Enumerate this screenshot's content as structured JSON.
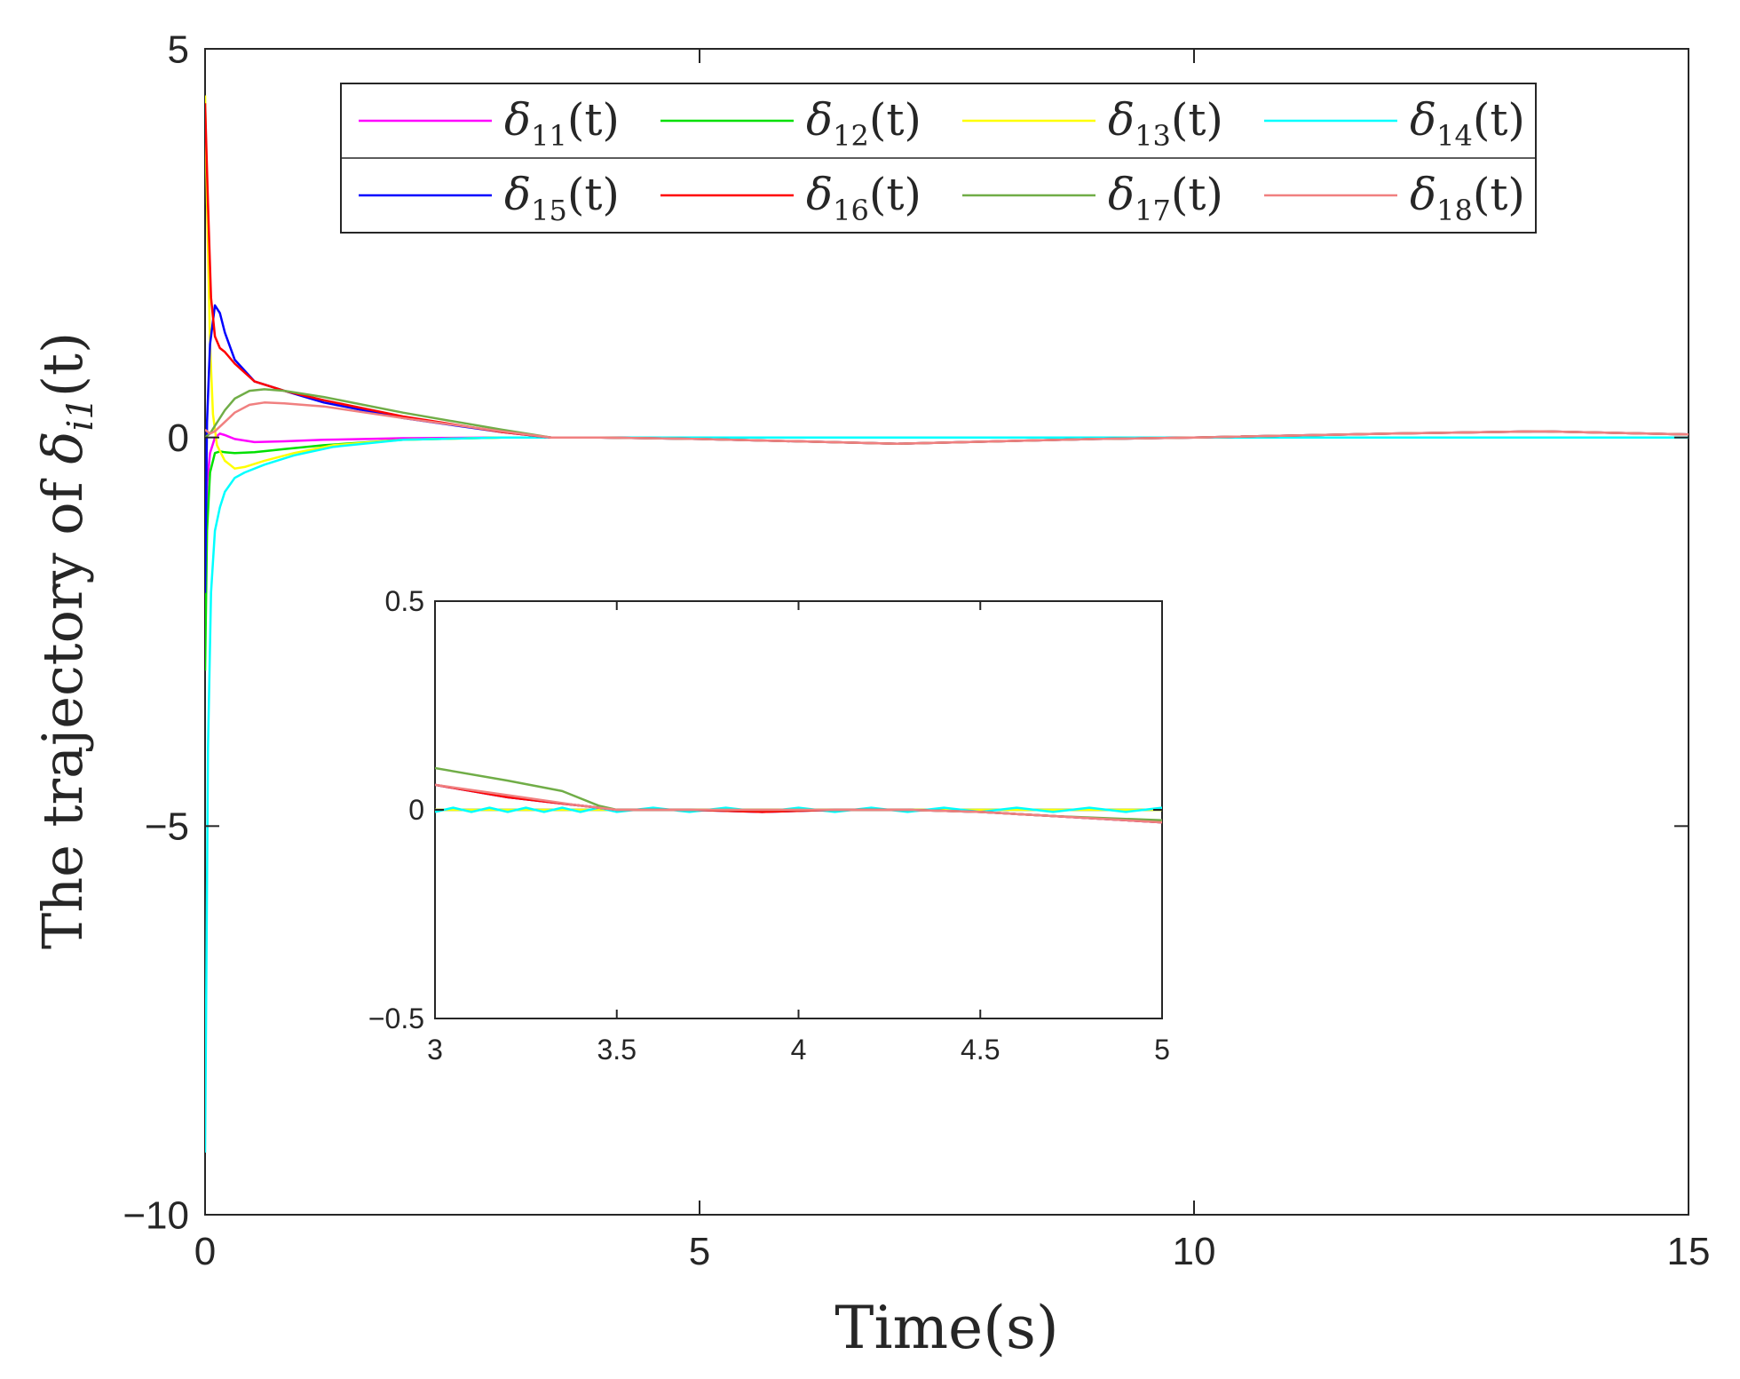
{
  "chart_data": [
    {
      "type": "line",
      "title": "",
      "xlabel": "Time(s)",
      "ylabel": "The trajectory of δ_{i1}(t)",
      "ylabel_parts": {
        "prefix": "The trajectory of ",
        "sym": "δ",
        "sub": "i1",
        "suffix": "(t)"
      },
      "xlim": [
        0,
        15
      ],
      "ylim": [
        -10,
        5
      ],
      "xticks": [
        0,
        5,
        10,
        15
      ],
      "yticks": [
        -10,
        -5,
        0,
        5
      ],
      "xtick_labels": [
        "0",
        "5",
        "10",
        "15"
      ],
      "ytick_labels": [
        "−10",
        "−5",
        "0",
        "5"
      ],
      "grid": false,
      "legend": {
        "placement": "top-right",
        "columns": 4
      },
      "series": [
        {
          "name": "δ11(t)",
          "sym": "δ",
          "sub": "11",
          "arg": "(t)",
          "color": "#ff00ff",
          "x": [
            0,
            0.02,
            0.05,
            0.1,
            0.15,
            0.2,
            0.3,
            0.5,
            0.8,
            1.2,
            2,
            3,
            5,
            10,
            15
          ],
          "y": [
            -1.5,
            -0.6,
            -0.2,
            0.0,
            0.05,
            0.03,
            -0.02,
            -0.06,
            -0.05,
            -0.03,
            -0.01,
            0.0,
            0.0,
            0.0,
            0.0
          ]
        },
        {
          "name": "δ12(t)",
          "sym": "δ",
          "sub": "12",
          "arg": "(t)",
          "color": "#00e000",
          "x": [
            0,
            0.02,
            0.05,
            0.1,
            0.15,
            0.2,
            0.3,
            0.5,
            0.8,
            1.2,
            2,
            3,
            5,
            10,
            15
          ],
          "y": [
            -3.0,
            -1.2,
            -0.45,
            -0.2,
            -0.18,
            -0.19,
            -0.2,
            -0.19,
            -0.15,
            -0.1,
            -0.03,
            0.0,
            0.0,
            0.0,
            0.0
          ]
        },
        {
          "name": "δ13(t)",
          "sym": "δ",
          "sub": "13",
          "arg": "(t)",
          "color": "#ffff00",
          "x": [
            0,
            0.02,
            0.05,
            0.08,
            0.12,
            0.2,
            0.3,
            0.4,
            0.6,
            0.9,
            1.3,
            2,
            3,
            5,
            10,
            15
          ],
          "y": [
            4.4,
            3.0,
            1.2,
            0.3,
            -0.1,
            -0.3,
            -0.4,
            -0.38,
            -0.3,
            -0.2,
            -0.1,
            -0.03,
            0.0,
            0.0,
            0.0,
            0.0
          ]
        },
        {
          "name": "δ14(t)",
          "sym": "δ",
          "sub": "14",
          "arg": "(t)",
          "color": "#00ffff",
          "x": [
            0,
            0.03,
            0.06,
            0.1,
            0.15,
            0.2,
            0.3,
            0.4,
            0.6,
            0.9,
            1.3,
            2,
            3,
            5,
            10,
            15
          ],
          "y": [
            -9.2,
            -4.0,
            -2.0,
            -1.2,
            -0.9,
            -0.7,
            -0.52,
            -0.45,
            -0.35,
            -0.23,
            -0.12,
            -0.03,
            0.0,
            0.0,
            0.0,
            0.0
          ]
        },
        {
          "name": "δ15(t)",
          "sym": "δ",
          "sub": "15",
          "arg": "(t)",
          "color": "#0000ff",
          "x": [
            0,
            0.02,
            0.05,
            0.1,
            0.15,
            0.2,
            0.3,
            0.5,
            0.8,
            1.2,
            2,
            3,
            3.5,
            4,
            5,
            7,
            9,
            10,
            12,
            13.5,
            15
          ],
          "y": [
            -2.0,
            0.2,
            1.2,
            1.7,
            1.6,
            1.35,
            1.0,
            0.72,
            0.6,
            0.45,
            0.25,
            0.07,
            0.0,
            0.0,
            -0.02,
            -0.08,
            -0.02,
            0.0,
            0.05,
            0.08,
            0.04
          ]
        },
        {
          "name": "δ16(t)",
          "sym": "δ",
          "sub": "16",
          "arg": "(t)",
          "color": "#ff0000",
          "x": [
            0,
            0.03,
            0.06,
            0.1,
            0.15,
            0.2,
            0.3,
            0.5,
            0.8,
            1.2,
            2,
            3,
            3.5,
            4,
            5,
            7,
            9,
            10,
            12,
            13.5,
            15
          ],
          "y": [
            4.3,
            3.0,
            1.8,
            1.3,
            1.15,
            1.1,
            0.95,
            0.72,
            0.6,
            0.48,
            0.27,
            0.07,
            0.0,
            0.0,
            -0.02,
            -0.08,
            -0.02,
            0.0,
            0.05,
            0.08,
            0.04
          ]
        },
        {
          "name": "δ17(t)",
          "sym": "δ",
          "sub": "17",
          "arg": "(t)",
          "color": "#70ad47",
          "x": [
            0,
            0.05,
            0.1,
            0.2,
            0.3,
            0.45,
            0.6,
            0.8,
            1.2,
            2,
            3,
            3.5,
            4,
            5,
            7,
            9,
            10,
            12,
            13.5,
            15
          ],
          "y": [
            0.0,
            0.05,
            0.15,
            0.35,
            0.5,
            0.6,
            0.62,
            0.6,
            0.52,
            0.32,
            0.1,
            0.0,
            0.0,
            -0.02,
            -0.08,
            -0.02,
            0.0,
            0.05,
            0.08,
            0.04
          ]
        },
        {
          "name": "δ18(t)",
          "sym": "δ",
          "sub": "18",
          "arg": "(t)",
          "color": "#f08080",
          "x": [
            0,
            0.05,
            0.1,
            0.2,
            0.3,
            0.45,
            0.6,
            0.8,
            1.2,
            2,
            3,
            3.5,
            4,
            5,
            7,
            9,
            10,
            12,
            13.5,
            15
          ],
          "y": [
            0.1,
            0.05,
            0.08,
            0.2,
            0.32,
            0.42,
            0.45,
            0.44,
            0.4,
            0.25,
            0.08,
            0.0,
            0.0,
            -0.02,
            -0.08,
            -0.02,
            0.0,
            0.05,
            0.08,
            0.04
          ]
        }
      ]
    },
    {
      "type": "line",
      "title": "",
      "xlabel": "",
      "ylabel": "",
      "xlim": [
        3,
        5
      ],
      "ylim": [
        -0.5,
        0.5
      ],
      "xticks": [
        3,
        3.5,
        4,
        4.5,
        5
      ],
      "yticks": [
        -0.5,
        0,
        0.5
      ],
      "xtick_labels": [
        "3",
        "3.5",
        "4",
        "4.5",
        "5"
      ],
      "ytick_labels": [
        "−0.5",
        "0",
        "0.5"
      ],
      "grid": false,
      "series": [
        {
          "name": "δ11(t)",
          "color": "#ff00ff",
          "x": [
            3,
            3.2,
            3.4,
            3.5,
            3.7,
            3.9,
            4.1,
            4.3,
            4.5,
            4.7,
            5
          ],
          "y": [
            0.0,
            0.0,
            0.0,
            0.0,
            0.0,
            0.0,
            0.0,
            0.0,
            0.0,
            0.0,
            0.0
          ]
        },
        {
          "name": "δ12(t)",
          "color": "#00e000",
          "x": [
            3,
            3.2,
            3.4,
            3.5,
            3.7,
            3.9,
            4.1,
            4.3,
            4.5,
            4.7,
            5
          ],
          "y": [
            0.0,
            0.0,
            0.0,
            0.0,
            0.0,
            0.0,
            0.0,
            0.0,
            0.0,
            0.0,
            0.0
          ]
        },
        {
          "name": "δ13(t)",
          "color": "#ffff00",
          "x": [
            3,
            3.2,
            3.4,
            3.5,
            3.7,
            3.9,
            4.1,
            4.3,
            4.5,
            4.7,
            5
          ],
          "y": [
            0.0,
            0.0,
            0.0,
            0.0,
            0.0,
            0.0,
            0.0,
            0.0,
            0.0,
            0.0,
            0.0
          ]
        },
        {
          "name": "δ14(t)",
          "color": "#00ffff",
          "x": [
            3,
            3.05,
            3.1,
            3.15,
            3.2,
            3.25,
            3.3,
            3.35,
            3.4,
            3.45,
            3.5,
            3.6,
            3.7,
            3.8,
            3.9,
            4.0,
            4.1,
            4.2,
            4.3,
            4.4,
            4.5,
            4.6,
            4.7,
            4.8,
            4.9,
            5
          ],
          "y": [
            -0.005,
            0.005,
            -0.005,
            0.005,
            -0.005,
            0.005,
            -0.005,
            0.005,
            -0.005,
            0.005,
            -0.005,
            0.005,
            -0.005,
            0.005,
            -0.005,
            0.005,
            -0.005,
            0.005,
            -0.005,
            0.005,
            -0.005,
            0.005,
            -0.005,
            0.005,
            -0.005,
            0.005
          ]
        },
        {
          "name": "δ15(t)",
          "color": "#0000ff",
          "x": [
            3,
            3.2,
            3.4,
            3.5,
            3.7,
            3.9,
            4.1,
            4.3,
            4.5,
            4.7,
            5
          ],
          "y": [
            0.06,
            0.03,
            0.01,
            0.0,
            0.0,
            -0.005,
            0.0,
            0.0,
            -0.005,
            -0.015,
            -0.03
          ]
        },
        {
          "name": "δ16(t)",
          "color": "#ff0000",
          "x": [
            3,
            3.2,
            3.4,
            3.5,
            3.7,
            3.9,
            4.1,
            4.3,
            4.5,
            4.7,
            5
          ],
          "y": [
            0.06,
            0.03,
            0.01,
            0.0,
            0.0,
            -0.005,
            0.0,
            0.0,
            -0.005,
            -0.015,
            -0.03
          ]
        },
        {
          "name": "δ17(t)",
          "color": "#70ad47",
          "x": [
            3,
            3.2,
            3.35,
            3.45,
            3.5,
            3.7,
            3.9,
            4.1,
            4.3,
            4.5,
            4.7,
            5
          ],
          "y": [
            0.1,
            0.07,
            0.045,
            0.01,
            0.0,
            0.0,
            0.0,
            0.0,
            0.0,
            -0.005,
            -0.015,
            -0.025
          ]
        },
        {
          "name": "δ18(t)",
          "color": "#f08080",
          "x": [
            3,
            3.2,
            3.4,
            3.5,
            3.7,
            3.9,
            4.1,
            4.3,
            4.5,
            4.7,
            5
          ],
          "y": [
            0.06,
            0.035,
            0.01,
            0.0,
            0.0,
            0.0,
            0.0,
            0.0,
            -0.005,
            -0.015,
            -0.03
          ]
        }
      ]
    }
  ]
}
